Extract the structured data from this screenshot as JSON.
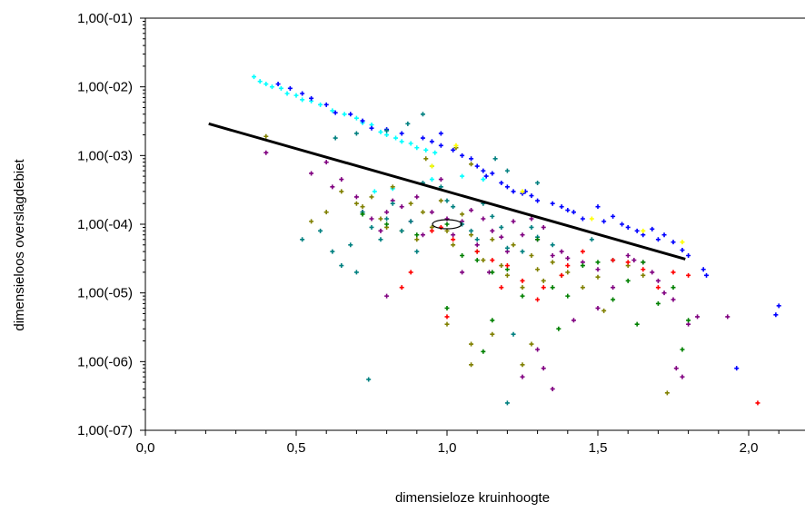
{
  "chart_data": {
    "type": "scatter",
    "title": "",
    "xlabel": "dimensieloze kruinhoogte",
    "ylabel": "dimensieloos overslagdebiet",
    "xlim": [
      0.0,
      2.2
    ],
    "ylim_log10": [
      -7,
      -1
    ],
    "y_scale": "log",
    "grid": false,
    "x_ticks": [
      {
        "value": 0.0,
        "label": "0,0"
      },
      {
        "value": 0.5,
        "label": "0,5"
      },
      {
        "value": 1.0,
        "label": "1,0"
      },
      {
        "value": 1.5,
        "label": "1,5"
      },
      {
        "value": 2.0,
        "label": "2,0"
      }
    ],
    "y_ticks": [
      {
        "value": 0.1,
        "label": "1,00(-01)"
      },
      {
        "value": 0.01,
        "label": "1,00(-02)"
      },
      {
        "value": 0.001,
        "label": "1,00(-03)"
      },
      {
        "value": 0.0001,
        "label": "1,00(-04)"
      },
      {
        "value": 1e-05,
        "label": "1,00(-05)"
      },
      {
        "value": 1e-06,
        "label": "1,00(-06)"
      },
      {
        "value": 1e-07,
        "label": "1,00(-07)"
      }
    ],
    "line": {
      "x": [
        0.21,
        1.79
      ],
      "y": [
        0.0029,
        3.1e-05
      ],
      "color": "#000000"
    },
    "ellipse": {
      "cx": 1.0,
      "cy": 0.0001,
      "color": "#000000"
    },
    "series": [
      {
        "color": "#00ffff",
        "points": [
          [
            0.36,
            0.014
          ],
          [
            0.38,
            0.012
          ],
          [
            0.4,
            0.011
          ],
          [
            0.42,
            0.01
          ],
          [
            0.45,
            0.0095
          ],
          [
            0.47,
            0.008
          ],
          [
            0.5,
            0.0075
          ],
          [
            0.52,
            0.0065
          ],
          [
            0.55,
            0.0062
          ],
          [
            0.58,
            0.0055
          ],
          [
            0.62,
            0.0045
          ],
          [
            0.66,
            0.004
          ],
          [
            0.7,
            0.0035
          ],
          [
            0.72,
            0.003
          ],
          [
            0.75,
            0.0028
          ],
          [
            0.78,
            0.0022
          ],
          [
            0.8,
            0.002
          ],
          [
            0.83,
            0.0018
          ],
          [
            0.85,
            0.0016
          ],
          [
            0.88,
            0.0015
          ],
          [
            0.9,
            0.0013
          ],
          [
            0.93,
            0.0012
          ],
          [
            0.96,
            0.0011
          ],
          [
            0.76,
            0.0003
          ],
          [
            0.82,
            0.00033
          ],
          [
            0.95,
            0.00045
          ],
          [
            1.05,
            0.0005
          ],
          [
            1.12,
            0.00045
          ]
        ]
      },
      {
        "color": "#0000ff",
        "points": [
          [
            0.44,
            0.011
          ],
          [
            0.48,
            0.0095
          ],
          [
            0.52,
            0.008
          ],
          [
            0.55,
            0.0068
          ],
          [
            0.6,
            0.0055
          ],
          [
            0.63,
            0.0042
          ],
          [
            0.68,
            0.004
          ],
          [
            0.72,
            0.0032
          ],
          [
            0.75,
            0.0025
          ],
          [
            0.8,
            0.0024
          ],
          [
            0.85,
            0.0021
          ],
          [
            0.92,
            0.0018
          ],
          [
            0.95,
            0.0016
          ],
          [
            0.98,
            0.0014
          ],
          [
            1.02,
            0.0012
          ],
          [
            1.05,
            0.001
          ],
          [
            1.08,
            0.0009
          ],
          [
            1.1,
            0.0007
          ],
          [
            1.12,
            0.0006
          ],
          [
            1.15,
            0.00055
          ],
          [
            1.18,
            0.0004
          ],
          [
            1.2,
            0.00035
          ],
          [
            1.22,
            0.0003
          ],
          [
            1.25,
            0.00028
          ],
          [
            1.28,
            0.00026
          ],
          [
            1.3,
            0.00022
          ],
          [
            1.35,
            0.0002
          ],
          [
            1.38,
            0.00018
          ],
          [
            1.4,
            0.00016
          ],
          [
            1.42,
            0.00015
          ],
          [
            1.45,
            0.00012
          ],
          [
            1.5,
            0.00018
          ],
          [
            1.52,
            0.00011
          ],
          [
            1.55,
            0.00013
          ],
          [
            1.58,
            0.0001
          ],
          [
            1.6,
            9e-05
          ],
          [
            1.63,
            8e-05
          ],
          [
            1.65,
            7e-05
          ],
          [
            1.68,
            8.5e-05
          ],
          [
            1.7,
            6e-05
          ],
          [
            1.72,
            7e-05
          ],
          [
            1.75,
            5.5e-05
          ],
          [
            1.78,
            4.2e-05
          ],
          [
            1.8,
            3.5e-05
          ],
          [
            1.85,
            2.2e-05
          ],
          [
            1.86,
            1.8e-05
          ],
          [
            1.96,
            8e-07
          ],
          [
            2.1,
            6.5e-06
          ],
          [
            2.09,
            4.8e-06
          ],
          [
            1.26,
            0.0003
          ],
          [
            1.13,
            0.0005
          ],
          [
            0.98,
            0.0021
          ]
        ]
      },
      {
        "color": "#800080",
        "points": [
          [
            0.4,
            0.0011
          ],
          [
            0.55,
            0.00055
          ],
          [
            0.6,
            0.0008
          ],
          [
            0.62,
            0.00035
          ],
          [
            0.65,
            0.00045
          ],
          [
            0.7,
            0.00025
          ],
          [
            0.72,
            0.00015
          ],
          [
            0.75,
            0.00012
          ],
          [
            0.78,
            8e-05
          ],
          [
            0.8,
            0.00015
          ],
          [
            0.82,
            0.00022
          ],
          [
            0.85,
            0.00018
          ],
          [
            0.88,
            0.00011
          ],
          [
            0.9,
            0.00025
          ],
          [
            0.92,
            7e-05
          ],
          [
            0.95,
            0.00015
          ],
          [
            0.98,
            0.00045
          ],
          [
            1.0,
            0.00012
          ],
          [
            1.02,
            7e-05
          ],
          [
            1.05,
            0.00011
          ],
          [
            1.08,
            0.00016
          ],
          [
            1.1,
            5e-05
          ],
          [
            1.12,
            0.00012
          ],
          [
            1.15,
            8e-05
          ],
          [
            1.18,
            6.5e-05
          ],
          [
            1.2,
            4e-05
          ],
          [
            1.22,
            0.00011
          ],
          [
            1.25,
            7e-05
          ],
          [
            1.28,
            0.00012
          ],
          [
            1.3,
            6e-05
          ],
          [
            1.32,
            9e-05
          ],
          [
            1.35,
            3.5e-05
          ],
          [
            1.38,
            4e-05
          ],
          [
            1.4,
            3.2e-05
          ],
          [
            1.45,
            2.8e-05
          ],
          [
            1.5,
            2.2e-05
          ],
          [
            1.55,
            1.2e-05
          ],
          [
            1.6,
            3.5e-05
          ],
          [
            1.62,
            3e-05
          ],
          [
            1.65,
            2.8e-05
          ],
          [
            1.68,
            2e-05
          ],
          [
            1.7,
            1.5e-05
          ],
          [
            1.72,
            1e-05
          ],
          [
            1.75,
            8e-06
          ],
          [
            1.76,
            8e-07
          ],
          [
            1.78,
            6e-07
          ],
          [
            1.8,
            3.5e-06
          ],
          [
            1.83,
            4.5e-06
          ],
          [
            1.93,
            4.5e-06
          ],
          [
            0.8,
            9e-06
          ],
          [
            1.25,
            6e-07
          ],
          [
            1.3,
            1.5e-06
          ],
          [
            1.32,
            8e-07
          ],
          [
            1.35,
            4e-07
          ],
          [
            1.42,
            4e-06
          ],
          [
            1.5,
            6e-06
          ],
          [
            1.14,
            2e-05
          ],
          [
            1.05,
            2e-05
          ]
        ]
      },
      {
        "color": "#808000",
        "points": [
          [
            0.4,
            0.0019
          ],
          [
            0.55,
            0.00011
          ],
          [
            0.6,
            0.00015
          ],
          [
            0.65,
            0.0003
          ],
          [
            0.7,
            0.0002
          ],
          [
            0.72,
            0.00018
          ],
          [
            0.75,
            0.00025
          ],
          [
            0.78,
            0.00012
          ],
          [
            0.8,
            9e-05
          ],
          [
            0.82,
            0.00035
          ],
          [
            0.85,
            8e-05
          ],
          [
            0.88,
            0.0002
          ],
          [
            0.9,
            6e-05
          ],
          [
            0.92,
            0.00015
          ],
          [
            0.95,
            9e-05
          ],
          [
            0.98,
            0.00022
          ],
          [
            1.0,
            8e-05
          ],
          [
            1.02,
            5e-05
          ],
          [
            1.05,
            0.00014
          ],
          [
            1.08,
            7e-05
          ],
          [
            1.1,
            4e-05
          ],
          [
            1.12,
            3e-05
          ],
          [
            1.15,
            6e-05
          ],
          [
            1.18,
            2.5e-05
          ],
          [
            1.2,
            1.8e-05
          ],
          [
            1.22,
            5e-05
          ],
          [
            1.25,
            1.2e-05
          ],
          [
            1.28,
            3.5e-05
          ],
          [
            1.3,
            2.2e-05
          ],
          [
            1.32,
            1.5e-05
          ],
          [
            1.35,
            2.8e-05
          ],
          [
            1.38,
            1.8e-05
          ],
          [
            1.4,
            2e-05
          ],
          [
            1.45,
            1.2e-05
          ],
          [
            1.5,
            1.7e-05
          ],
          [
            1.52,
            5.5e-06
          ],
          [
            1.6,
            2.5e-05
          ],
          [
            1.65,
            1.8e-05
          ],
          [
            1.73,
            3.5e-07
          ],
          [
            1.03,
            0.0013
          ],
          [
            1.08,
            0.00075
          ],
          [
            0.93,
            0.0009
          ],
          [
            1.0,
            3.5e-06
          ],
          [
            1.08,
            1.8e-06
          ],
          [
            1.15,
            2.5e-06
          ],
          [
            1.25,
            9e-07
          ],
          [
            1.28,
            1.8e-06
          ],
          [
            1.08,
            9e-07
          ]
        ]
      },
      {
        "color": "#008080",
        "points": [
          [
            0.52,
            6e-05
          ],
          [
            0.58,
            8e-05
          ],
          [
            0.62,
            4e-05
          ],
          [
            0.65,
            2.5e-05
          ],
          [
            0.68,
            5e-05
          ],
          [
            0.7,
            2e-05
          ],
          [
            0.72,
            0.00015
          ],
          [
            0.75,
            9e-05
          ],
          [
            0.78,
            6e-05
          ],
          [
            0.8,
            0.00012
          ],
          [
            0.82,
            0.0002
          ],
          [
            0.85,
            8e-05
          ],
          [
            0.88,
            0.00011
          ],
          [
            0.9,
            4e-05
          ],
          [
            0.92,
            0.0004
          ],
          [
            0.95,
            0.0007
          ],
          [
            0.98,
            0.00035
          ],
          [
            1.0,
            0.00022
          ],
          [
            1.02,
            0.00018
          ],
          [
            1.05,
            0.0001
          ],
          [
            1.08,
            8e-05
          ],
          [
            1.1,
            6e-05
          ],
          [
            1.12,
            0.0002
          ],
          [
            1.15,
            0.00013
          ],
          [
            1.18,
            9e-05
          ],
          [
            1.2,
            4.5e-05
          ],
          [
            1.22,
            2.5e-06
          ],
          [
            1.25,
            4e-05
          ],
          [
            1.28,
            9e-05
          ],
          [
            1.3,
            6.5e-05
          ],
          [
            1.35,
            5e-05
          ],
          [
            0.74,
            5.5e-07
          ],
          [
            1.2,
            2.5e-07
          ],
          [
            0.63,
            0.0018
          ],
          [
            0.7,
            0.0021
          ],
          [
            0.8,
            0.0023
          ],
          [
            0.87,
            0.0029
          ],
          [
            0.92,
            0.004
          ],
          [
            1.16,
            0.0009
          ],
          [
            1.2,
            0.0006
          ],
          [
            1.3,
            0.0004
          ],
          [
            1.48,
            6e-05
          ],
          [
            1.55,
            3e-05
          ]
        ]
      },
      {
        "color": "#008000",
        "points": [
          [
            0.72,
            0.00014
          ],
          [
            0.8,
            0.0001
          ],
          [
            0.9,
            7e-05
          ],
          [
            1.0,
            0.0001
          ],
          [
            1.05,
            3.5e-05
          ],
          [
            1.1,
            3e-05
          ],
          [
            1.15,
            2e-05
          ],
          [
            1.2,
            2.2e-05
          ],
          [
            1.25,
            9e-06
          ],
          [
            1.3,
            6e-05
          ],
          [
            1.35,
            1.2e-05
          ],
          [
            1.4,
            9e-06
          ],
          [
            1.45,
            2.5e-05
          ],
          [
            1.5,
            2.8e-05
          ],
          [
            1.55,
            8e-06
          ],
          [
            1.6,
            1.5e-05
          ],
          [
            1.65,
            2.8e-05
          ],
          [
            1.7,
            7e-06
          ],
          [
            1.75,
            1.2e-05
          ],
          [
            1.78,
            1.5e-06
          ],
          [
            1.8,
            4e-06
          ],
          [
            1.63,
            3.5e-06
          ],
          [
            1.37,
            3e-06
          ],
          [
            1.15,
            4e-06
          ],
          [
            1.12,
            1.4e-06
          ],
          [
            1.0,
            6e-06
          ]
        ]
      },
      {
        "color": "#ff0000",
        "points": [
          [
            0.95,
            8e-05
          ],
          [
            0.98,
            9e-05
          ],
          [
            1.02,
            6e-05
          ],
          [
            1.1,
            4e-05
          ],
          [
            1.15,
            3e-05
          ],
          [
            1.18,
            1.2e-05
          ],
          [
            1.2,
            2.5e-05
          ],
          [
            1.25,
            1.5e-05
          ],
          [
            1.3,
            8e-06
          ],
          [
            1.32,
            1.2e-05
          ],
          [
            1.38,
            1.8e-05
          ],
          [
            1.4,
            2.5e-05
          ],
          [
            1.45,
            4e-05
          ],
          [
            1.55,
            3e-05
          ],
          [
            1.6,
            2.8e-05
          ],
          [
            1.65,
            2.2e-05
          ],
          [
            1.7,
            1.2e-05
          ],
          [
            1.75,
            2e-05
          ],
          [
            1.8,
            1.8e-05
          ],
          [
            0.88,
            2e-05
          ],
          [
            0.85,
            1.2e-05
          ],
          [
            1.0,
            4.5e-06
          ],
          [
            2.03,
            2.5e-07
          ]
        ]
      },
      {
        "color": "#ffff00",
        "points": [
          [
            1.03,
            0.0014
          ],
          [
            0.95,
            0.0007
          ],
          [
            1.25,
            0.0003
          ],
          [
            1.48,
            0.00012
          ],
          [
            1.78,
            5.5e-05
          ],
          [
            1.65,
            8e-05
          ]
        ]
      }
    ]
  }
}
